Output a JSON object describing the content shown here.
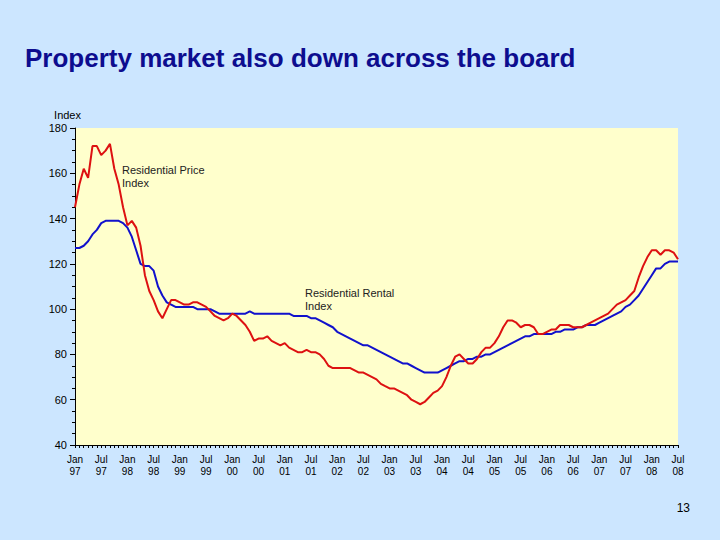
{
  "chart_data": {
    "type": "line",
    "title": "Property market also down across the board",
    "ylabel": "Index",
    "page_number": "13",
    "categories": [
      "Jan 97",
      null,
      null,
      null,
      null,
      null,
      "Jul 97",
      null,
      null,
      null,
      null,
      null,
      "Jan 98",
      null,
      null,
      null,
      null,
      null,
      "Jul 98",
      null,
      null,
      null,
      null,
      null,
      "Jan 99",
      null,
      null,
      null,
      null,
      null,
      "Jul 99",
      null,
      null,
      null,
      null,
      null,
      "Jan 00",
      null,
      null,
      null,
      null,
      null,
      "Jul 00",
      null,
      null,
      null,
      null,
      null,
      "Jan 01",
      null,
      null,
      null,
      null,
      null,
      "Jul 01",
      null,
      null,
      null,
      null,
      null,
      "Jan 02",
      null,
      null,
      null,
      null,
      null,
      "Jul 02",
      null,
      null,
      null,
      null,
      null,
      "Jan 03",
      null,
      null,
      null,
      null,
      null,
      "Jul 03",
      null,
      null,
      null,
      null,
      null,
      "Jan 04",
      null,
      null,
      null,
      null,
      null,
      "Jul 04",
      null,
      null,
      null,
      null,
      null,
      "Jan 05",
      null,
      null,
      null,
      null,
      null,
      "Jul 05",
      null,
      null,
      null,
      null,
      null,
      "Jan 06",
      null,
      null,
      null,
      null,
      null,
      "Jul 06",
      null,
      null,
      null,
      null,
      null,
      "Jan 07",
      null,
      null,
      null,
      null,
      null,
      "Jul 07",
      null,
      null,
      null,
      null,
      null,
      "Jan 08",
      null,
      null,
      null,
      null,
      null,
      "Jul 08"
    ],
    "series": [
      {
        "name": "Residential Price Index",
        "color": "#dd1111",
        "values": [
          145,
          155,
          162,
          158,
          172,
          172,
          168,
          170,
          173,
          162,
          155,
          145,
          137,
          139,
          136,
          128,
          115,
          108,
          104,
          99,
          96,
          100,
          104,
          104,
          103,
          102,
          102,
          103,
          103,
          102,
          101,
          99,
          97,
          96,
          95,
          96,
          98,
          97,
          95,
          93,
          90,
          86,
          87,
          87,
          88,
          86,
          85,
          84,
          85,
          83,
          82,
          81,
          81,
          82,
          81,
          81,
          80,
          78,
          75,
          74,
          74,
          74,
          74,
          74,
          73,
          72,
          72,
          71,
          70,
          69,
          67,
          66,
          65,
          65,
          64,
          63,
          62,
          60,
          59,
          58,
          59,
          61,
          63,
          64,
          66,
          70,
          75,
          79,
          80,
          78,
          76,
          76,
          78,
          81,
          83,
          83,
          85,
          88,
          92,
          95,
          95,
          94,
          92,
          93,
          93,
          92,
          89,
          89,
          90,
          91,
          91,
          93,
          93,
          93,
          92,
          92,
          92,
          93,
          94,
          95,
          96,
          97,
          98,
          100,
          102,
          103,
          104,
          106,
          108,
          114,
          119,
          123,
          126,
          126,
          124,
          126,
          126,
          125,
          122
        ]
      },
      {
        "name": "Residential Rental Index",
        "color": "#1111cc",
        "values": [
          127,
          127,
          128,
          130,
          133,
          135,
          138,
          139,
          139,
          139,
          139,
          138,
          136,
          132,
          126,
          120,
          119,
          119,
          117,
          110,
          106,
          103,
          102,
          101,
          101,
          101,
          101,
          101,
          100,
          100,
          100,
          100,
          99,
          98,
          98,
          98,
          98,
          98,
          98,
          98,
          99,
          98,
          98,
          98,
          98,
          98,
          98,
          98,
          98,
          98,
          97,
          97,
          97,
          97,
          96,
          96,
          95,
          94,
          93,
          92,
          90,
          89,
          88,
          87,
          86,
          85,
          84,
          84,
          83,
          82,
          81,
          80,
          79,
          78,
          77,
          76,
          76,
          75,
          74,
          73,
          72,
          72,
          72,
          72,
          73,
          74,
          75,
          76,
          77,
          77,
          78,
          78,
          79,
          79,
          80,
          80,
          81,
          82,
          83,
          84,
          85,
          86,
          87,
          88,
          88,
          89,
          89,
          89,
          89,
          89,
          90,
          90,
          91,
          91,
          91,
          92,
          92,
          93,
          93,
          93,
          94,
          95,
          96,
          97,
          98,
          99,
          101,
          102,
          104,
          106,
          109,
          112,
          115,
          118,
          118,
          120,
          121,
          121,
          121
        ]
      }
    ],
    "annotations": [
      {
        "text": "Residential Price Index",
        "series": "Residential Price Index"
      },
      {
        "text": "Residential Rental Index",
        "series": "Residential Rental Index"
      }
    ],
    "ylim": [
      40,
      180
    ],
    "yticks": [
      40,
      60,
      80,
      100,
      120,
      140,
      160,
      180
    ],
    "grid": false
  }
}
